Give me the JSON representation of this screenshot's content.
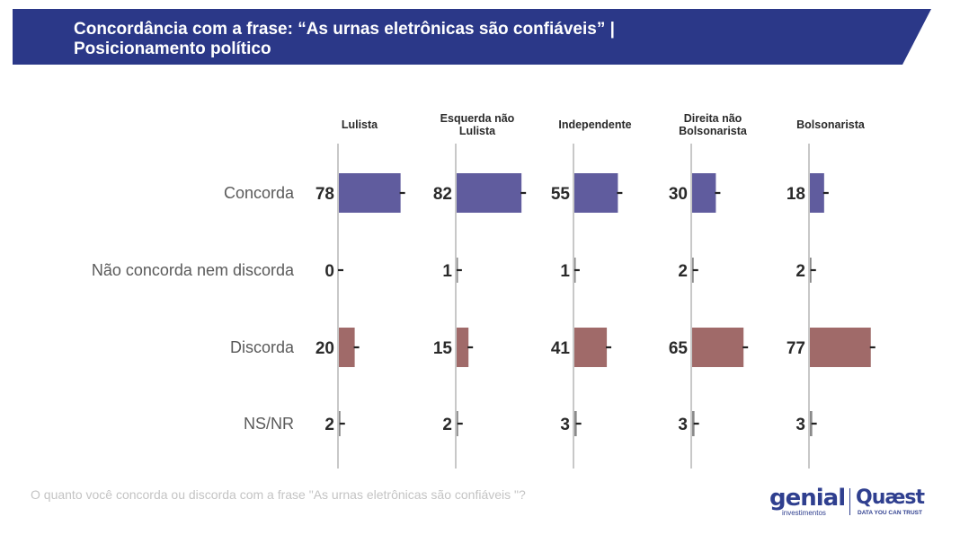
{
  "header": {
    "title_line1": "Concordância com a frase: “As urnas eletrônicas são confiáveis” |",
    "title_line2": "Posicionamento político",
    "bg_color": "#2b3888"
  },
  "footer": {
    "question": "O quanto você concorda ou discorda com a frase \"As urnas eletrônicas são confiáveis \"?"
  },
  "logos": {
    "genial": "genial",
    "genial_sub": "investimentos",
    "quaest": "Quæst",
    "quaest_sub": "DATA YOU CAN TRUST"
  },
  "chart_data": {
    "type": "bar",
    "orientation": "horizontal",
    "categories": [
      "Concorda",
      "Não concorda nem discorda",
      "Discorda",
      "NS/NR"
    ],
    "groups": [
      {
        "name": "Lulista",
        "values": [
          78,
          0,
          20,
          2
        ]
      },
      {
        "name": "Esquerda não Lulista",
        "values": [
          82,
          1,
          15,
          2
        ]
      },
      {
        "name": "Independente",
        "values": [
          55,
          1,
          41,
          3
        ]
      },
      {
        "name": "Direita não Bolsonarista",
        "values": [
          30,
          2,
          65,
          3
        ]
      },
      {
        "name": "Bolsonarista",
        "values": [
          18,
          2,
          77,
          3
        ]
      }
    ],
    "error_bars": true,
    "colors": {
      "Concorda": "#605c9e",
      "Discorda": "#a06a69",
      "axis": "#c8c8c8",
      "value_text": "#2a2a2a",
      "category_text": "#5a5a5a"
    }
  }
}
